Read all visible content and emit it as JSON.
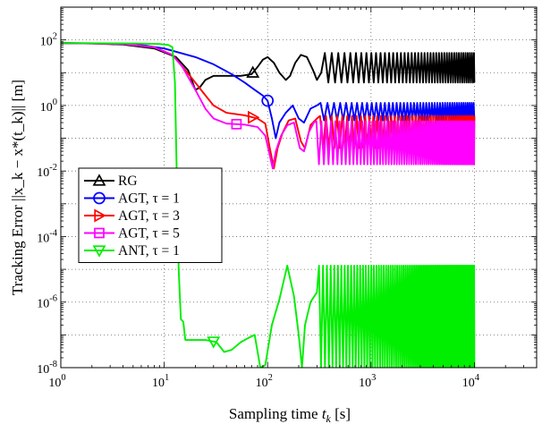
{
  "chart_data": {
    "type": "line",
    "xscale": "log",
    "yscale": "log",
    "xlim": [
      1,
      40000
    ],
    "ylim": [
      1e-08,
      1000
    ],
    "grid": true,
    "legend_position": "center-left",
    "xlabel": "Sampling time t_k [s]",
    "ylabel": "Tracking Error ||x_k − x*(t_k)|| [m]",
    "x_ticks": [
      {
        "value": 1,
        "base": "10",
        "exp": "0"
      },
      {
        "value": 10,
        "base": "10",
        "exp": "1"
      },
      {
        "value": 100,
        "base": "10",
        "exp": "2"
      },
      {
        "value": 1000,
        "base": "10",
        "exp": "3"
      },
      {
        "value": 10000,
        "base": "10",
        "exp": "4"
      }
    ],
    "y_ticks": [
      {
        "value": 1e-08,
        "base": "10",
        "exp": "-8"
      },
      {
        "value": 1e-06,
        "base": "10",
        "exp": "-6"
      },
      {
        "value": 0.0001,
        "base": "10",
        "exp": "-4"
      },
      {
        "value": 0.01,
        "base": "10",
        "exp": "-2"
      },
      {
        "value": 1,
        "base": "10",
        "exp": "0"
      },
      {
        "value": 100,
        "base": "10",
        "exp": "2"
      }
    ],
    "series": [
      {
        "name": "RG",
        "color": "#000000",
        "marker": "triangle-up",
        "marker_at": 72,
        "points": [
          [
            1,
            80
          ],
          [
            2,
            78
          ],
          [
            4,
            72
          ],
          [
            8,
            55
          ],
          [
            13,
            30
          ],
          [
            17,
            12
          ],
          [
            20,
            3.0
          ],
          [
            22,
            3.5
          ],
          [
            25,
            6
          ],
          [
            30,
            8
          ],
          [
            40,
            8
          ],
          [
            55,
            8
          ],
          [
            70,
            9
          ],
          [
            80,
            15
          ],
          [
            90,
            25
          ],
          [
            100,
            30
          ],
          [
            115,
            20
          ],
          [
            130,
            10
          ],
          [
            150,
            6
          ],
          [
            165,
            8
          ],
          [
            185,
            20
          ],
          [
            210,
            35
          ],
          [
            240,
            30
          ],
          [
            275,
            12
          ],
          [
            300,
            6
          ],
          [
            330,
            10
          ]
        ],
        "osc": {
          "start": 330,
          "end": 10000,
          "low": 5,
          "high": 40,
          "period": 0.035
        }
      },
      {
        "name": "AGT, τ = 1",
        "color": "#0000ff",
        "marker": "circle",
        "marker_at": 100,
        "points": [
          [
            1,
            80
          ],
          [
            3,
            78
          ],
          [
            6,
            70
          ],
          [
            10,
            55
          ],
          [
            20,
            30
          ],
          [
            30,
            18
          ],
          [
            45,
            9
          ],
          [
            60,
            5
          ],
          [
            75,
            3
          ],
          [
            90,
            2
          ],
          [
            100,
            1.4
          ],
          [
            110,
            0.4
          ],
          [
            120,
            0.1
          ],
          [
            130,
            0.3
          ],
          [
            150,
            0.6
          ],
          [
            175,
            1.0
          ],
          [
            200,
            0.4
          ],
          [
            225,
            0.3
          ],
          [
            260,
            0.8
          ],
          [
            300,
            1.0
          ]
        ],
        "osc": {
          "start": 300,
          "end": 10000,
          "low": 0.35,
          "high": 1.2,
          "period": 0.035
        }
      },
      {
        "name": "AGT, τ = 3",
        "color": "#ff0000",
        "marker": "triangle-right",
        "marker_at": 72,
        "points": [
          [
            1,
            80
          ],
          [
            4,
            75
          ],
          [
            8,
            60
          ],
          [
            12,
            35
          ],
          [
            16,
            12
          ],
          [
            20,
            5
          ],
          [
            24,
            2.4
          ],
          [
            30,
            1.0
          ],
          [
            40,
            0.6
          ],
          [
            60,
            0.5
          ],
          [
            80,
            0.4
          ],
          [
            95,
            0.28
          ],
          [
            105,
            0.05
          ],
          [
            115,
            0.012
          ],
          [
            125,
            0.05
          ],
          [
            140,
            0.15
          ],
          [
            160,
            0.35
          ],
          [
            185,
            0.4
          ],
          [
            210,
            0.08
          ],
          [
            230,
            0.05
          ],
          [
            260,
            0.25
          ],
          [
            300,
            0.4
          ]
        ],
        "osc": {
          "start": 300,
          "end": 10000,
          "low": 0.05,
          "high": 0.48,
          "period": 0.03
        }
      },
      {
        "name": "AGT, τ = 5",
        "color": "#ff00ff",
        "marker": "square",
        "marker_at": 50,
        "points": [
          [
            1,
            80
          ],
          [
            4,
            75
          ],
          [
            8,
            60
          ],
          [
            12,
            35
          ],
          [
            15,
            15
          ],
          [
            20,
            3
          ],
          [
            25,
            0.8
          ],
          [
            30,
            0.4
          ],
          [
            40,
            0.28
          ],
          [
            60,
            0.26
          ],
          [
            80,
            0.22
          ],
          [
            95,
            0.12
          ],
          [
            105,
            0.03
          ],
          [
            112,
            0.012
          ],
          [
            120,
            0.04
          ],
          [
            135,
            0.12
          ],
          [
            155,
            0.25
          ],
          [
            180,
            0.3
          ],
          [
            205,
            0.05
          ],
          [
            225,
            0.04
          ],
          [
            250,
            0.15
          ],
          [
            280,
            0.3
          ]
        ],
        "osc": {
          "start": 280,
          "end": 10000,
          "low": 0.016,
          "high": 0.33,
          "period": 0.025
        }
      },
      {
        "name": "ANT, τ = 1",
        "color": "#00ee00",
        "marker": "triangle-down",
        "marker_at": 30,
        "points": [
          [
            1,
            80
          ],
          [
            5,
            78
          ],
          [
            9,
            75
          ],
          [
            11,
            70
          ],
          [
            12,
            60
          ],
          [
            12.7,
            5
          ],
          [
            13.2,
            0.01
          ],
          [
            13.8,
            1e-05
          ],
          [
            14.5,
            3e-07
          ],
          [
            15.3,
            2.5e-07
          ],
          [
            16,
            7e-08
          ],
          [
            20,
            7e-08
          ],
          [
            25,
            7e-08
          ],
          [
            32,
            6e-08
          ],
          [
            38,
            3e-08
          ],
          [
            45,
            3.5e-08
          ],
          [
            55,
            6e-08
          ],
          [
            65,
            8e-08
          ],
          [
            75,
            1e-07
          ],
          [
            85,
            1e-08
          ],
          [
            95,
            1.2e-08
          ],
          [
            110,
            2e-07
          ],
          [
            130,
            1.2e-06
          ],
          [
            155,
            1.3e-05
          ],
          [
            180,
            1.5e-06
          ],
          [
            200,
            1e-07
          ],
          [
            215,
            1e-08
          ],
          [
            230,
            2e-07
          ],
          [
            260,
            1e-06
          ],
          [
            300,
            2e-06
          ]
        ],
        "osc": {
          "start": 300,
          "end": 10000,
          "low": 1e-08,
          "high": 1.3e-05,
          "period": 0.02
        }
      }
    ]
  }
}
